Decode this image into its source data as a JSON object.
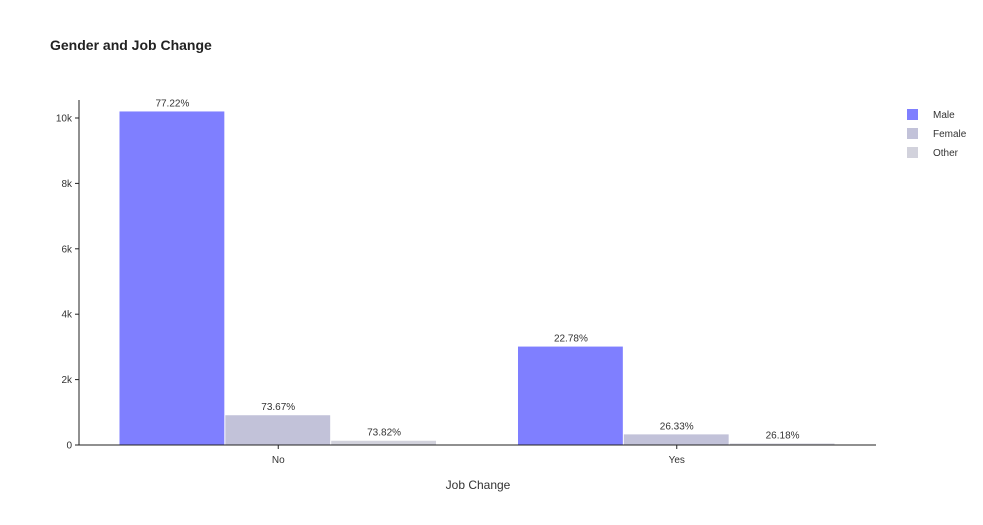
{
  "chart_data": {
    "type": "bar",
    "title": "Gender and Job Change",
    "xlabel": "Job Change",
    "ylabel": "",
    "categories": [
      "No",
      "Yes"
    ],
    "series": [
      {
        "name": "Male",
        "color": "#7f7fff",
        "values": [
          10200,
          3010
        ],
        "labels": [
          "77.22%",
          "22.78%"
        ]
      },
      {
        "name": "Female",
        "color": "#c2c2d9",
        "values": [
          910,
          325
        ],
        "labels": [
          "73.67%",
          "26.33%"
        ]
      },
      {
        "name": "Other",
        "color": "#d2d2dc",
        "values": [
          130,
          46
        ],
        "labels": [
          "73.82%",
          "26.18%"
        ]
      }
    ],
    "ylim": [
      0,
      10800
    ],
    "yticks": [
      0,
      2000,
      4000,
      6000,
      8000,
      10000
    ],
    "ytick_labels": [
      "0",
      "2k",
      "4k",
      "6k",
      "8k",
      "10k"
    ],
    "grid": false,
    "legend_position": "top-right"
  }
}
